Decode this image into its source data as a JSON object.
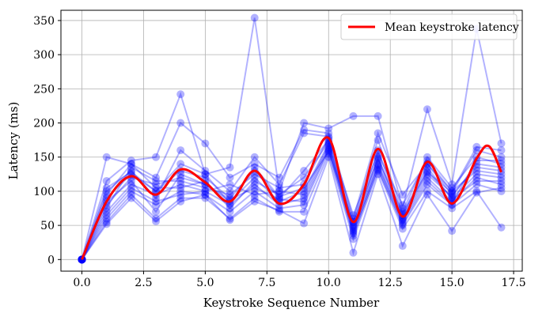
{
  "chart_data": {
    "type": "line",
    "xlabel": "Keystroke Sequence Number",
    "ylabel": "Latency (ms)",
    "xlim": [
      -0.85,
      17.85
    ],
    "ylim": [
      -17,
      365
    ],
    "xticks": [
      0.0,
      2.5,
      5.0,
      7.5,
      10.0,
      12.5,
      15.0,
      17.5
    ],
    "xtick_labels": [
      "0.0",
      "2.5",
      "5.0",
      "7.5",
      "10.0",
      "12.5",
      "15.0",
      "17.5"
    ],
    "yticks": [
      0,
      50,
      100,
      150,
      200,
      250,
      300,
      350
    ],
    "ytick_labels": [
      "0",
      "50",
      "100",
      "150",
      "200",
      "250",
      "300",
      "350"
    ],
    "grid": true,
    "legend_position": "top-right",
    "colors": {
      "sessions": "#0000ff",
      "mean": "#ff0000"
    },
    "x": [
      0,
      1,
      2,
      3,
      4,
      5,
      6,
      7,
      8,
      9,
      10,
      11,
      12,
      13,
      14,
      15,
      16,
      17
    ],
    "sessions": [
      [
        0,
        115,
        145,
        150,
        242,
        125,
        135,
        354,
        100,
        200,
        192,
        210,
        210,
        75,
        220,
        110,
        338,
        170
      ],
      [
        0,
        150,
        140,
        120,
        200,
        170,
        120,
        140,
        120,
        190,
        185,
        60,
        185,
        95,
        140,
        100,
        165,
        160
      ],
      [
        0,
        100,
        130,
        90,
        160,
        130,
        100,
        150,
        110,
        185,
        180,
        55,
        175,
        70,
        150,
        105,
        150,
        140
      ],
      [
        0,
        90,
        125,
        100,
        130,
        120,
        90,
        130,
        90,
        130,
        175,
        50,
        160,
        65,
        140,
        95,
        135,
        130
      ],
      [
        0,
        80,
        120,
        110,
        120,
        110,
        85,
        120,
        85,
        100,
        170,
        45,
        150,
        60,
        130,
        90,
        125,
        120
      ],
      [
        0,
        70,
        110,
        95,
        110,
        100,
        80,
        110,
        80,
        90,
        165,
        40,
        140,
        55,
        120,
        85,
        120,
        110
      ],
      [
        0,
        60,
        100,
        80,
        100,
        95,
        70,
        100,
        75,
        80,
        160,
        35,
        135,
        50,
        110,
        80,
        110,
        100
      ],
      [
        0,
        55,
        95,
        60,
        90,
        90,
        60,
        90,
        70,
        70,
        155,
        30,
        130,
        45,
        100,
        75,
        100,
        47
      ],
      [
        0,
        52,
        90,
        56,
        85,
        95,
        58,
        85,
        72,
        53,
        150,
        10,
        125,
        20,
        95,
        42,
        98,
        105
      ],
      [
        0,
        75,
        135,
        115,
        115,
        105,
        95,
        125,
        105,
        110,
        178,
        65,
        155,
        80,
        145,
        100,
        130,
        125
      ],
      [
        0,
        95,
        140,
        105,
        105,
        115,
        75,
        115,
        95,
        120,
        172,
        48,
        145,
        62,
        135,
        88,
        115,
        115
      ],
      [
        0,
        65,
        105,
        85,
        95,
        100,
        110,
        95,
        100,
        95,
        168,
        42,
        138,
        58,
        125,
        92,
        140,
        135
      ],
      [
        0,
        85,
        115,
        70,
        125,
        110,
        88,
        105,
        88,
        85,
        162,
        38,
        132,
        52,
        115,
        82,
        145,
        145
      ],
      [
        0,
        105,
        128,
        100,
        140,
        125,
        82,
        135,
        92,
        105,
        158,
        55,
        148,
        68,
        128,
        98,
        160,
        150
      ]
    ],
    "mean_series": {
      "name": "Mean keystroke latency",
      "x": [
        0,
        1,
        2,
        3,
        4,
        5,
        6,
        7,
        8,
        9,
        10,
        11,
        12,
        13,
        14,
        15,
        16,
        16.5,
        17
      ],
      "values": [
        0,
        85,
        122,
        95,
        132,
        113,
        85,
        130,
        82,
        110,
        178,
        55,
        162,
        63,
        143,
        82,
        148,
        166,
        128
      ]
    }
  }
}
